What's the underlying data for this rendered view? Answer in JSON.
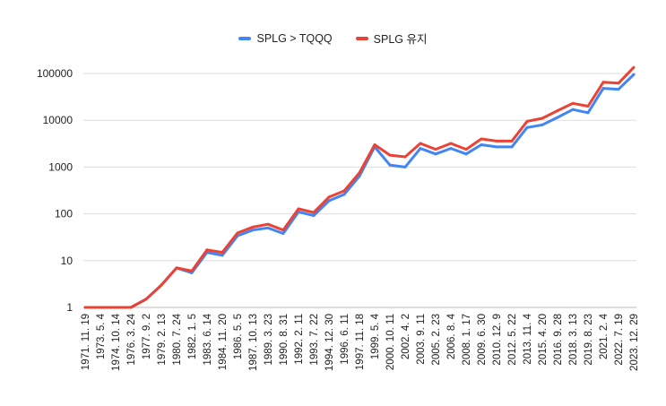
{
  "chart_data": {
    "type": "line",
    "title": "",
    "xlabel": "",
    "ylabel": "",
    "yscale": "log",
    "ylim": [
      1,
      100000
    ],
    "yticks": [
      "1",
      "10",
      "100",
      "1000",
      "10000",
      "100000"
    ],
    "legend_position": "top",
    "grid": true,
    "categories": [
      "1971. 11. 19",
      "1973. 5. 4",
      "1974. 10. 14",
      "1976. 3. 24",
      "1977. 9. 2",
      "1979. 2. 13",
      "1980. 7. 24",
      "1982. 1. 5",
      "1983. 6. 14",
      "1984. 11. 20",
      "1986. 5. 5",
      "1987. 10. 13",
      "1989. 3. 23",
      "1990. 8. 31",
      "1992. 2. 11",
      "1993. 7. 22",
      "1994. 12. 30",
      "1996. 6. 11",
      "1997. 11. 18",
      "1999. 5. 4",
      "2000. 10. 11",
      "2002. 4. 2",
      "2003. 9. 11",
      "2005. 2. 23",
      "2006. 8. 4",
      "2008. 1. 17",
      "2009. 6. 30",
      "2010. 12. 9",
      "2012. 5. 22",
      "2013. 11. 4",
      "2015. 4. 20",
      "2016. 9. 28",
      "2018. 3. 13",
      "2019. 8. 23",
      "2021. 2. 4",
      "2022. 7. 19",
      "2023. 12. 29"
    ],
    "series": [
      {
        "name": "SPLG > TQQQ",
        "color": "#4285f4",
        "values": [
          1,
          1,
          1,
          1,
          1.5,
          3,
          7,
          5.5,
          15,
          13,
          34,
          45,
          50,
          38,
          110,
          92,
          190,
          260,
          640,
          2700,
          1100,
          1000,
          2500,
          1900,
          2500,
          1900,
          3000,
          2700,
          2700,
          7000,
          8000,
          11500,
          17000,
          14500,
          48000,
          46000,
          95000
        ]
      },
      {
        "name": "SPLG 유지",
        "color": "#ea4335",
        "values": [
          1,
          1,
          1,
          1,
          1.5,
          3,
          7,
          6,
          17,
          15,
          39,
          52,
          60,
          45,
          128,
          107,
          228,
          310,
          750,
          3000,
          1800,
          1650,
          3200,
          2400,
          3200,
          2400,
          4000,
          3600,
          3600,
          9500,
          11000,
          16000,
          23000,
          20000,
          65000,
          62000,
          135000
        ]
      }
    ]
  }
}
